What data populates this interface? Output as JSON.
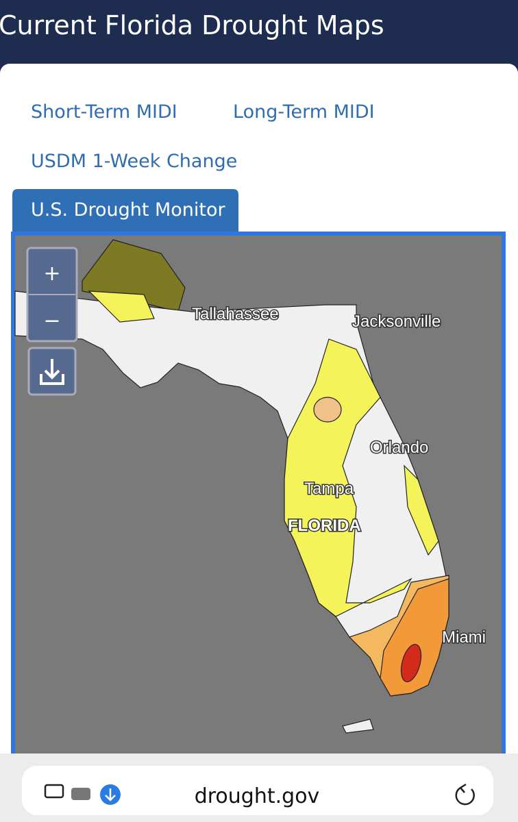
{
  "header": {
    "title": "Current Florida Drought Maps"
  },
  "tabs": [
    "Short-Term MIDI",
    "Long-Term MIDI",
    "USDM 1-Week Change",
    "U.S. Drought Monitor"
  ],
  "map": {
    "zoom_in": "+",
    "zoom_out": "−",
    "labels": [
      "Tallahassee",
      "Jacksonville",
      "Orlando",
      "Tampa",
      "FLORIDA",
      "Miami"
    ]
  },
  "browser": {
    "url": "drought.gov"
  }
}
